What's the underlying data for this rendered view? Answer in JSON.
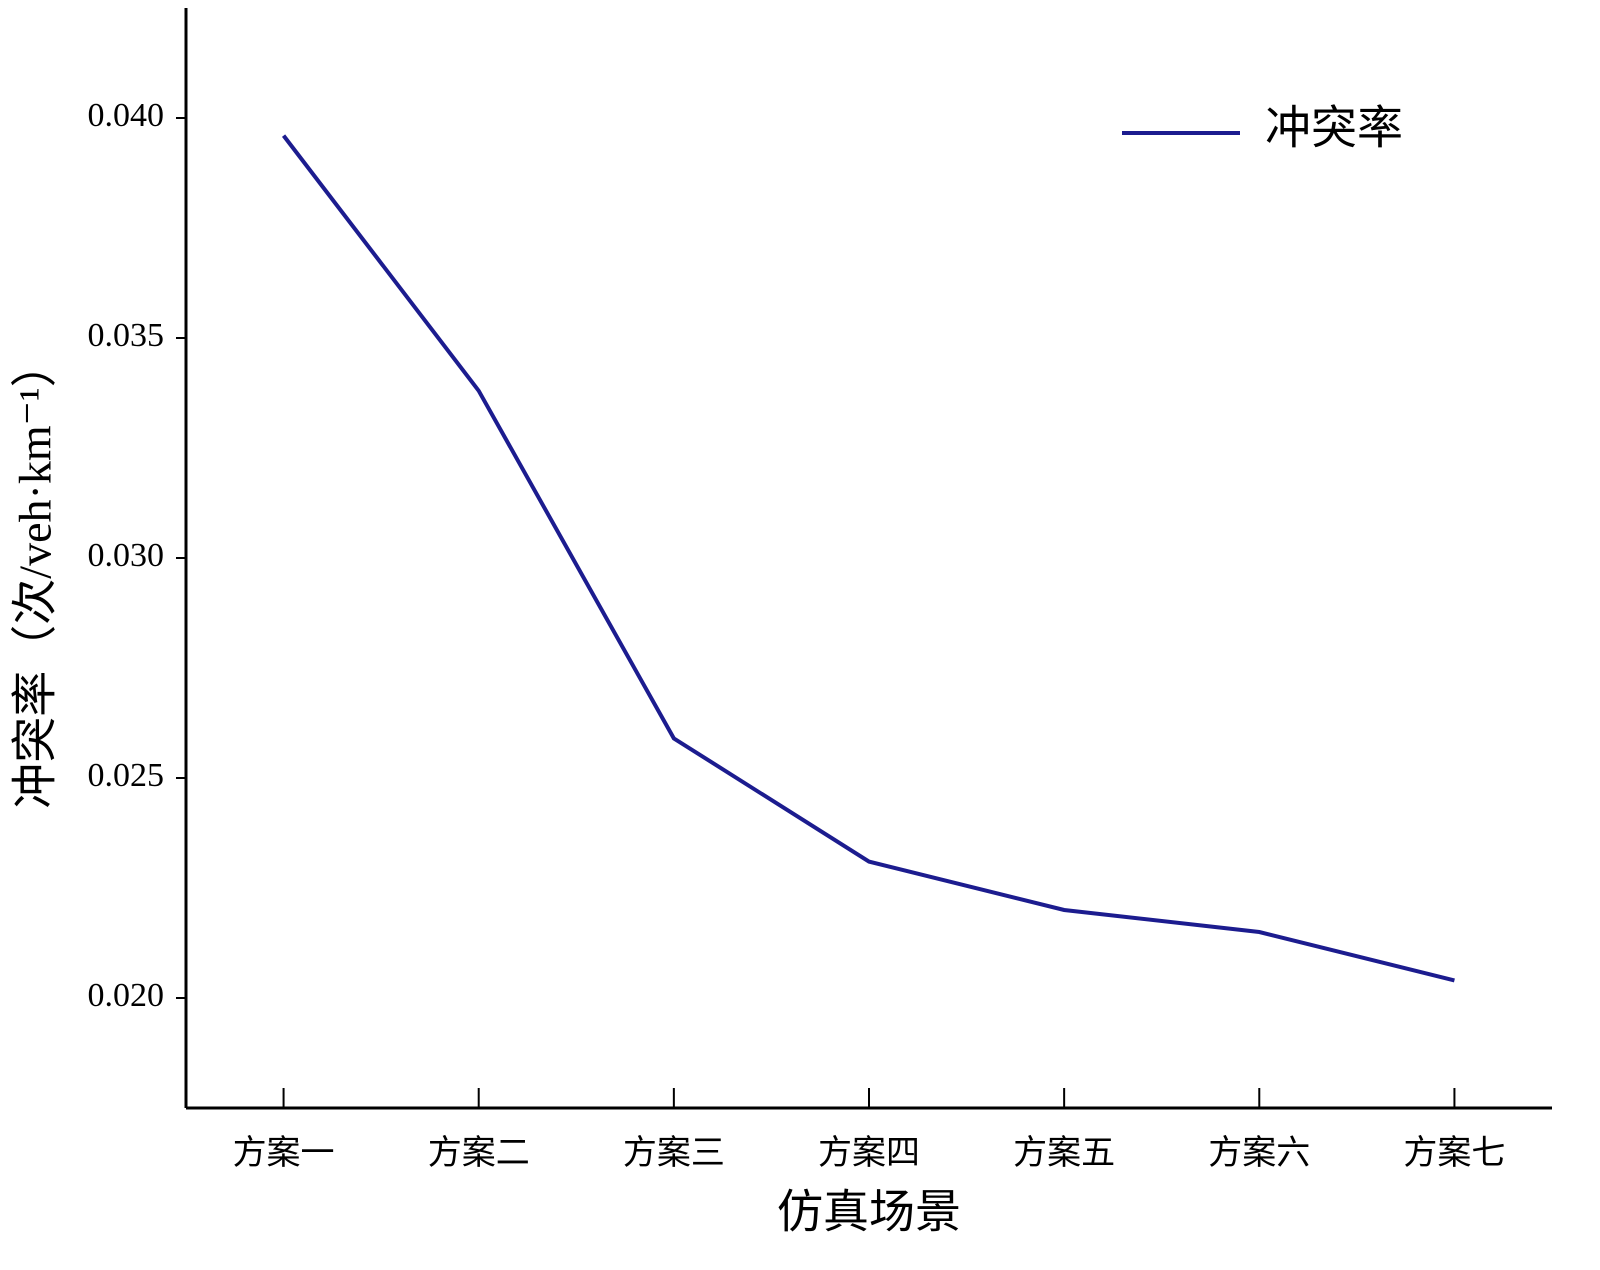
{
  "chart_data": {
    "type": "line",
    "xlabel": "仿真场景",
    "ylabel": "冲突率（次/veh·km⁻¹）",
    "categories": [
      "方案一",
      "方案二",
      "方案三",
      "方案四",
      "方案五",
      "方案六",
      "方案七"
    ],
    "series": [
      {
        "name": "冲突率",
        "color": "#1c1c8f",
        "values": [
          0.0396,
          0.0338,
          0.0259,
          0.0231,
          0.022,
          0.0215,
          0.0204
        ]
      }
    ],
    "ylim": [
      0.0175,
      0.0425
    ],
    "yticks": [
      {
        "value": 0.02,
        "label": "0.020"
      },
      {
        "value": 0.025,
        "label": "0.025"
      },
      {
        "value": 0.03,
        "label": "0.030"
      },
      {
        "value": 0.035,
        "label": "0.035"
      },
      {
        "value": 0.04,
        "label": "0.040"
      }
    ],
    "legend": "upper right",
    "grid": false
  }
}
